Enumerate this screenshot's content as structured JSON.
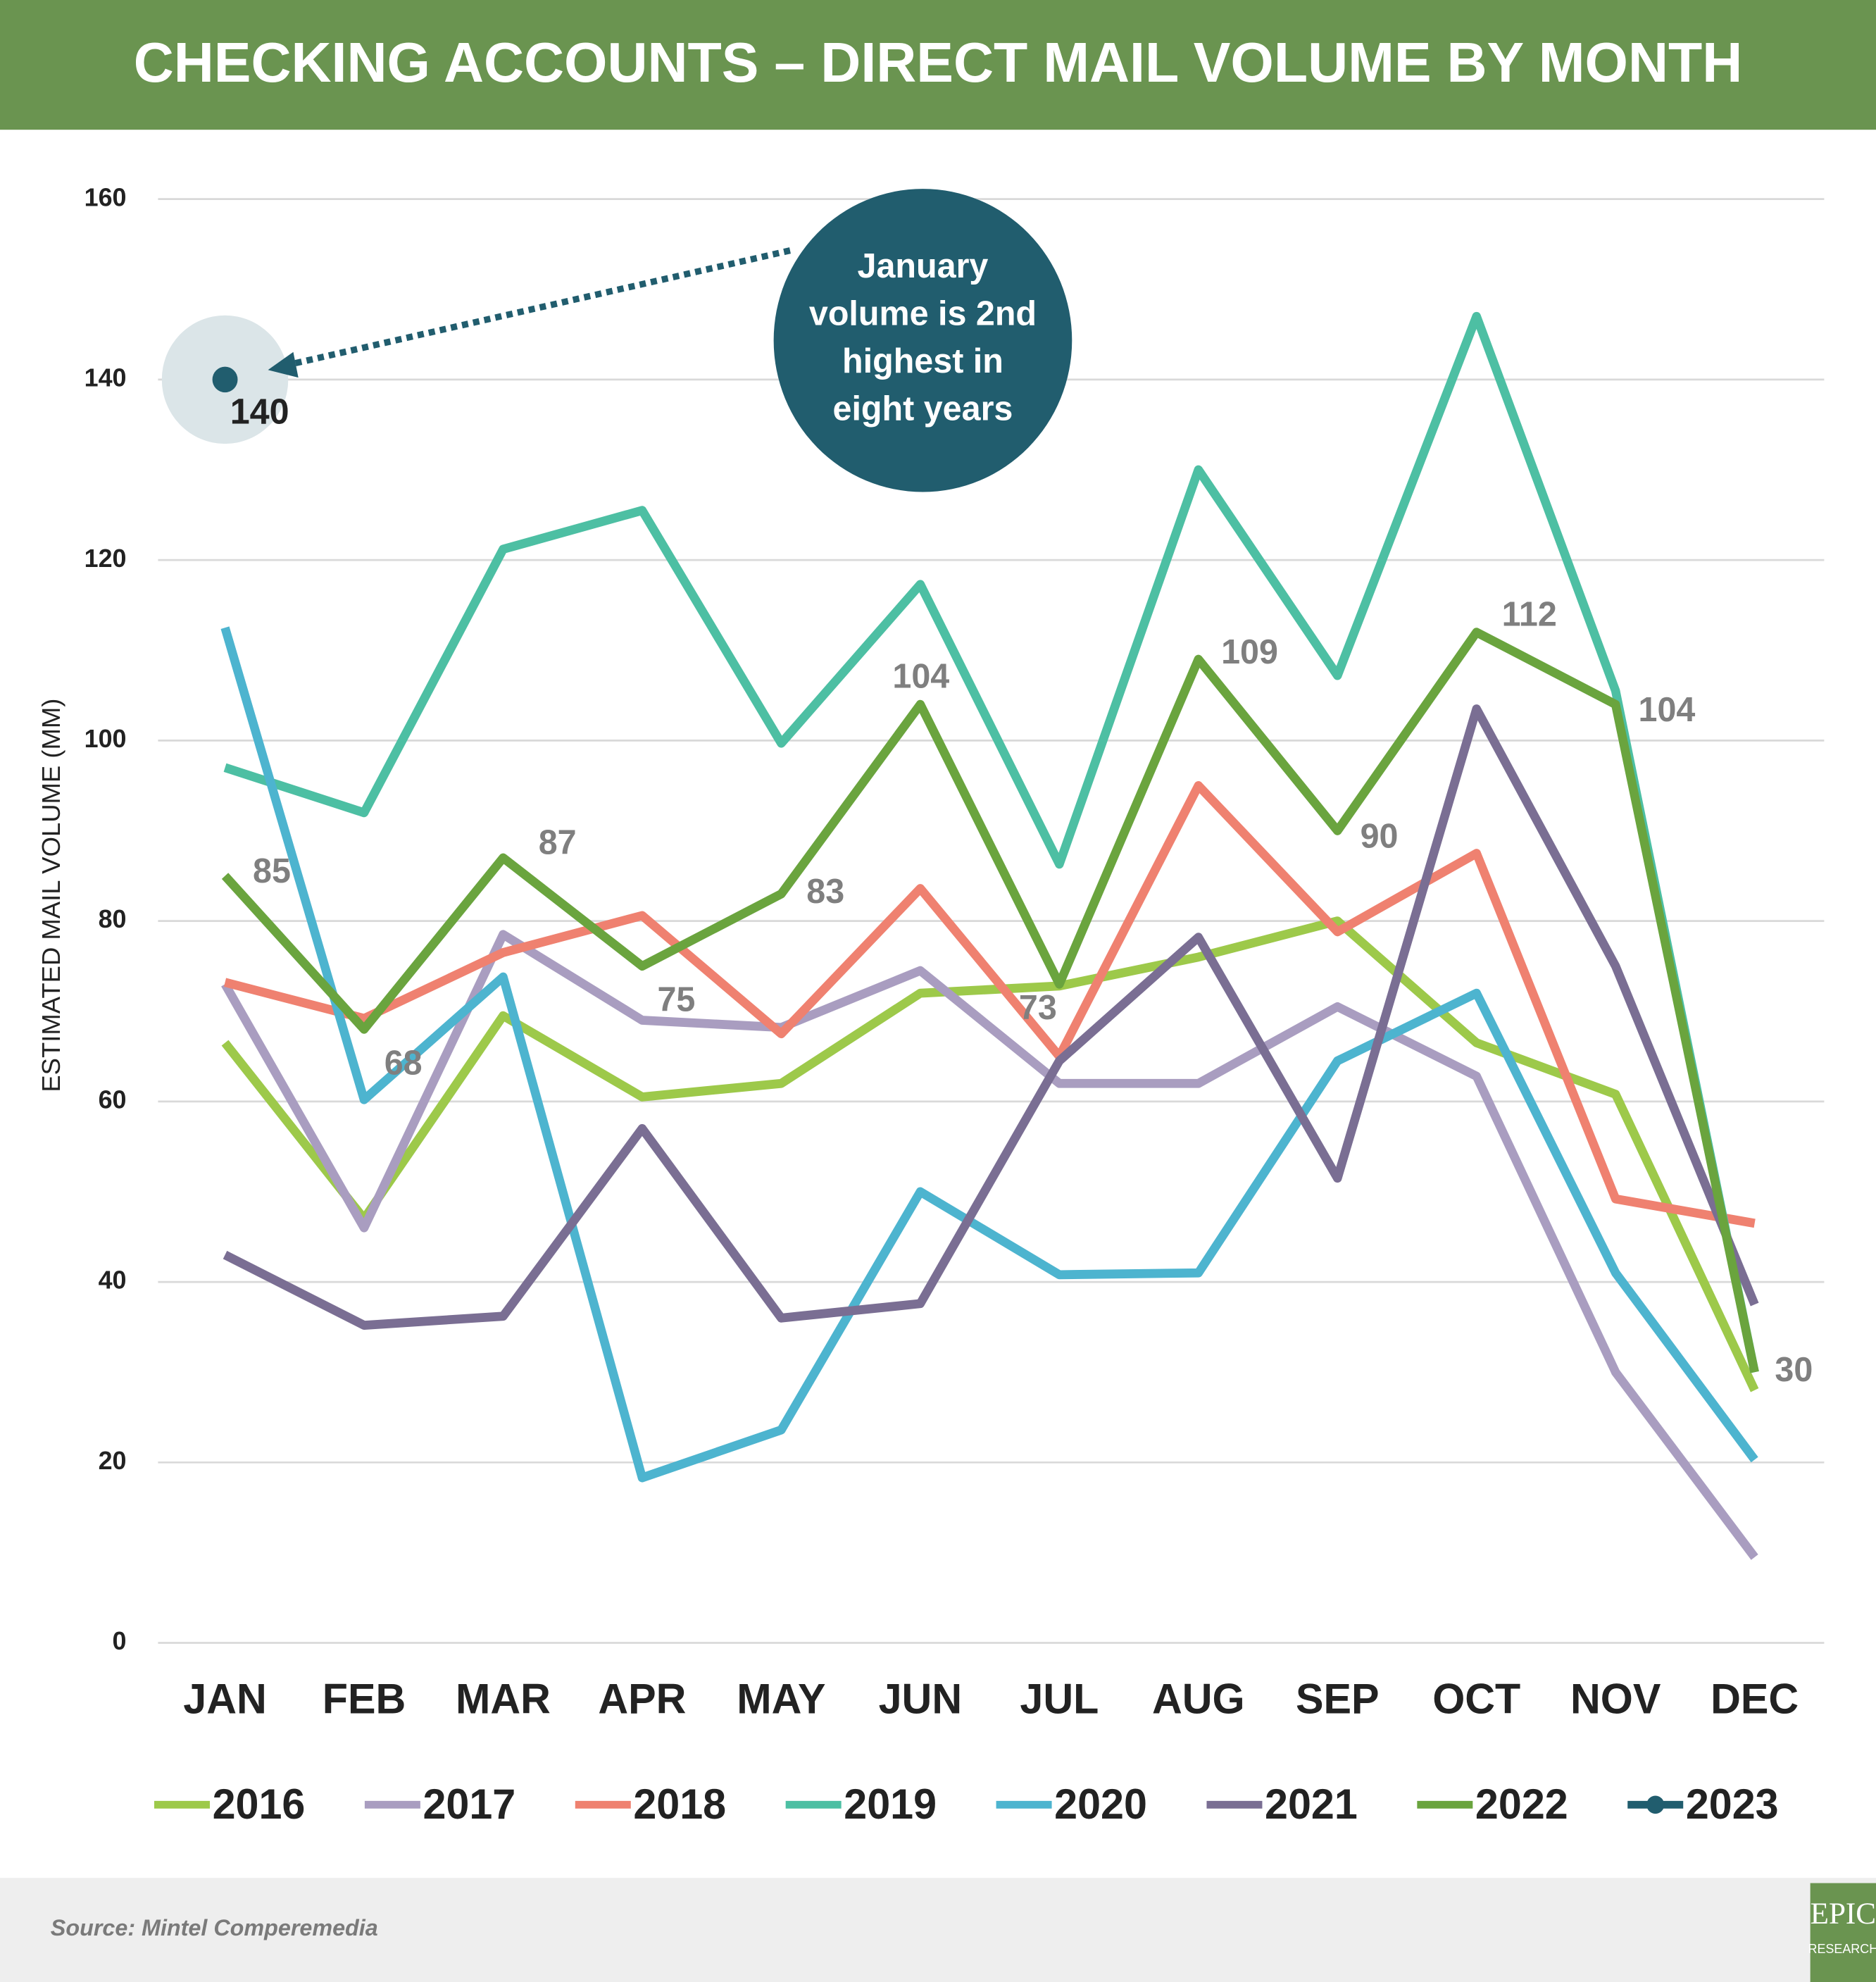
{
  "chart_data": {
    "type": "line",
    "title": "CHECKING ACCOUNTS – DIRECT MAIL VOLUME BY MONTH",
    "y_label": "ESTIMATED MAIL VOLUME (MM)",
    "categories": [
      "JAN",
      "FEB",
      "MAR",
      "APR",
      "MAY",
      "JUN",
      "JUL",
      "AUG",
      "SEP",
      "OCT",
      "NOV",
      "DEC"
    ],
    "ylim": [
      0,
      160
    ],
    "yticks": [
      0,
      20,
      40,
      60,
      80,
      100,
      120,
      140,
      160
    ],
    "grid": true,
    "series": [
      {
        "name": "2016",
        "color": "#9dc94a",
        "values": [
          66.5,
          47,
          69.5,
          60.5,
          62,
          72,
          72.8,
          76,
          80,
          66.5,
          60.8,
          28
        ]
      },
      {
        "name": "2017",
        "color": "#a99dc0",
        "values": [
          73,
          46,
          78.5,
          69,
          68.2,
          74.5,
          62,
          62,
          70.5,
          62.8,
          30,
          9.5
        ]
      },
      {
        "name": "2018",
        "color": "#ef8170",
        "values": [
          73.2,
          69.2,
          76.5,
          80.6,
          67.5,
          83.6,
          65,
          95,
          78.8,
          87.5,
          49.2,
          46.5
        ]
      },
      {
        "name": "2019",
        "color": "#4dbfa3",
        "values": [
          97,
          92,
          121.2,
          125.5,
          99.7,
          117.3,
          86.3,
          130,
          107.2,
          147,
          105.5,
          30
        ]
      },
      {
        "name": "2020",
        "color": "#4db4cf",
        "values": [
          112.5,
          60.2,
          73.8,
          18.3,
          23.6,
          50,
          40.8,
          41,
          64.5,
          72,
          41,
          20.3
        ]
      },
      {
        "name": "2021",
        "color": "#7a6e93",
        "values": [
          43,
          35.2,
          36.2,
          57,
          36,
          37.6,
          64.5,
          78.2,
          51.5,
          103.5,
          75,
          37.5
        ]
      },
      {
        "name": "2022",
        "color": "#6aa43e",
        "values": [
          85,
          68,
          87,
          75,
          83,
          104,
          73,
          109,
          90,
          112,
          104,
          30
        ]
      },
      {
        "name": "2023",
        "color": "#215d6e",
        "values": [
          140,
          null,
          null,
          null,
          null,
          null,
          null,
          null,
          null,
          null,
          null,
          null
        ]
      }
    ],
    "annotation": [
      "January",
      "volume is 2nd",
      "highest in",
      "eight years"
    ],
    "source": "Source: Mintel Comperemedia",
    "logo": [
      "EPIC",
      "RESEARCH"
    ]
  }
}
